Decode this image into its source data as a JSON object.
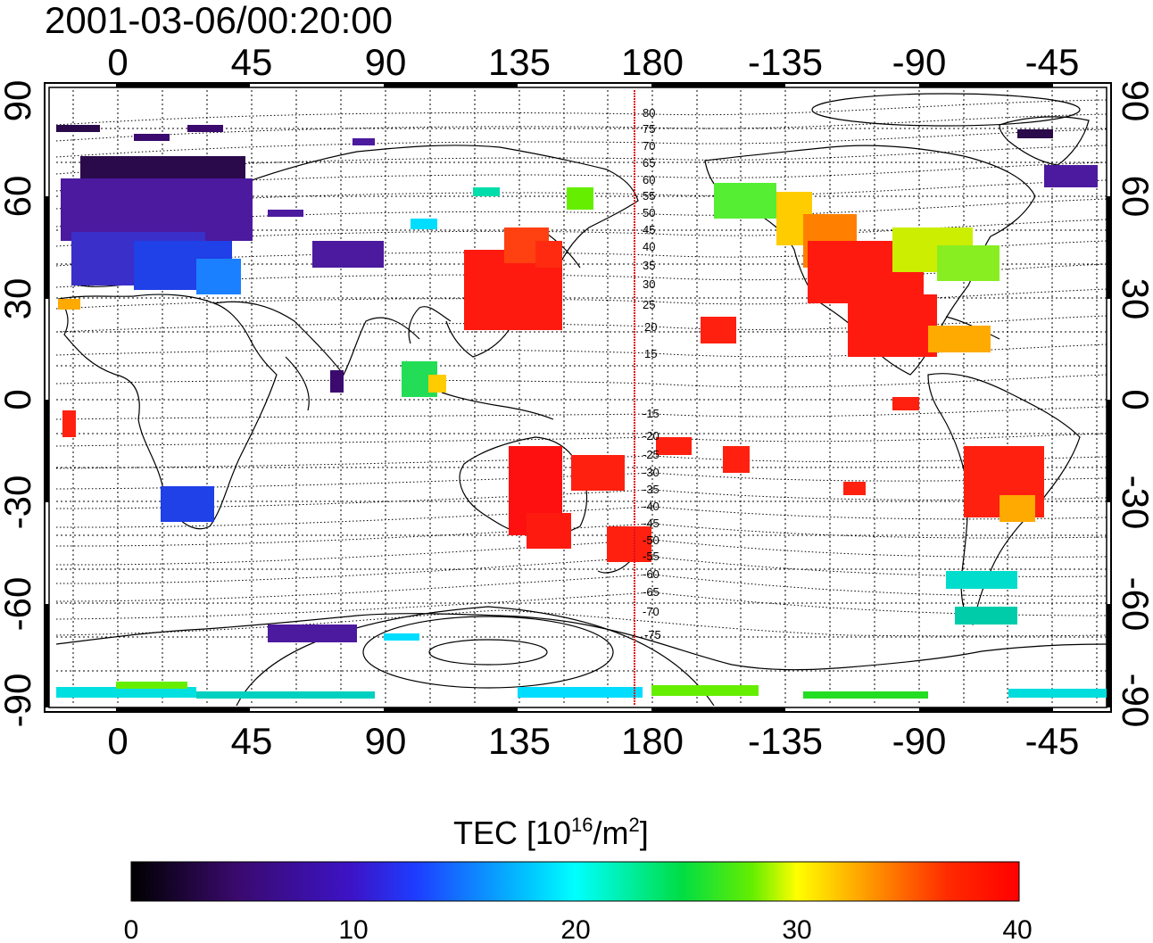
{
  "title": "2001-03-06/00:20:00",
  "map": {
    "lon_ticks": [
      "0",
      "45",
      "90",
      "135",
      "180",
      "-135",
      "-90",
      "-45"
    ],
    "lat_ticks": [
      "90",
      "60",
      "30",
      "0",
      "-30",
      "-60",
      "-90"
    ],
    "contour_labels_north": [
      "80",
      "75",
      "70",
      "65",
      "60",
      "55",
      "50",
      "45",
      "40",
      "35",
      "30",
      "25",
      "20",
      "15"
    ],
    "contour_labels_south": [
      "-15",
      "-20",
      "-25",
      "-30",
      "-35",
      "-40",
      "-45",
      "-50",
      "-55",
      "-60",
      "-65",
      "-70",
      "-75"
    ],
    "grid": "dotted",
    "land_outline": "black coastlines",
    "marker_line_color": "#e01010"
  },
  "colorbar": {
    "label_main": "TEC  [10",
    "label_exp1": "16",
    "label_mid": "/m",
    "label_exp2": "2",
    "label_end": "]",
    "ticks": [
      "0",
      "10",
      "20",
      "30",
      "40"
    ],
    "range": [
      0,
      40
    ],
    "colormap": "black-purple-blue-cyan-green-yellow-red"
  }
}
